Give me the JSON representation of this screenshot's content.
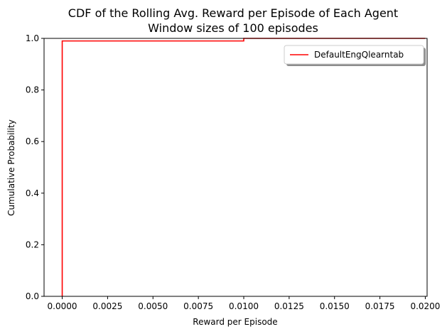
{
  "chart_data": {
    "type": "line",
    "title": "CDF of the Rolling Avg. Reward per Episode of Each Agent",
    "subtitle": "Window sizes of 100 episodes",
    "xlabel": "Reward per Episode",
    "ylabel": "Cumulative Probability",
    "xlim": [
      -0.001,
      0.0201
    ],
    "ylim": [
      0.0,
      1.0
    ],
    "xticks": [
      0.0,
      0.0025,
      0.005,
      0.0075,
      0.01,
      0.0125,
      0.015,
      0.0175,
      0.02
    ],
    "xtick_labels": [
      "0.0000",
      "0.0025",
      "0.0050",
      "0.0075",
      "0.0100",
      "0.0125",
      "0.0150",
      "0.0175",
      "0.0200"
    ],
    "yticks": [
      0.0,
      0.2,
      0.4,
      0.6,
      0.8,
      1.0
    ],
    "ytick_labels": [
      "0.0",
      "0.2",
      "0.4",
      "0.6",
      "0.8",
      "1.0"
    ],
    "grid": false,
    "legend_position": "top-right",
    "series": [
      {
        "name": "DefaultEngQlearntab",
        "color": "#ff0000",
        "step": true,
        "x": [
          0.0,
          0.0,
          0.01,
          0.01,
          0.02
        ],
        "y": [
          0.0,
          0.99,
          0.99,
          1.0,
          1.0
        ]
      }
    ]
  }
}
